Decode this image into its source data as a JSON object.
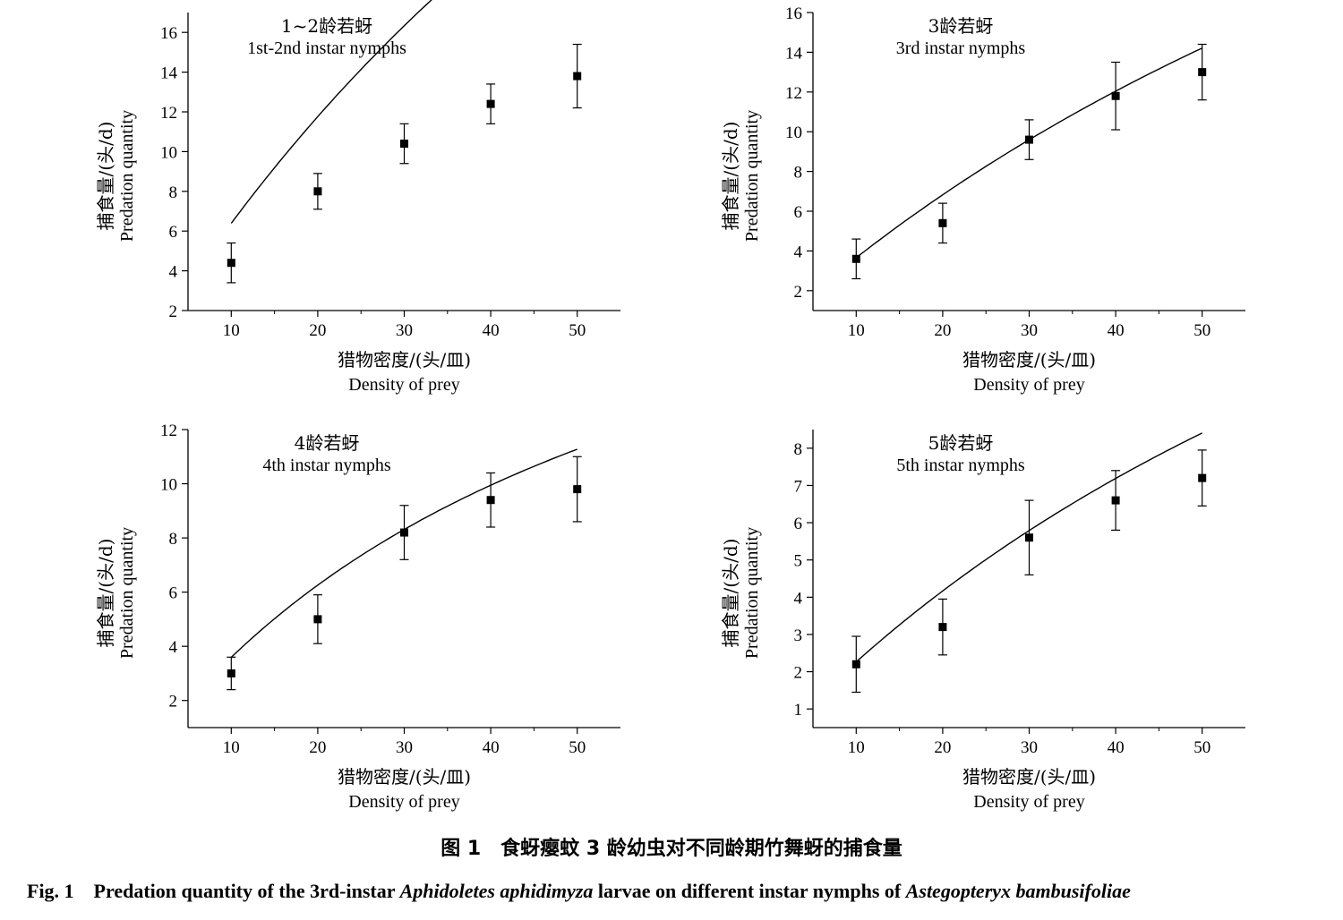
{
  "chart_data": [
    {
      "type": "scatter",
      "title": "1~2龄若蚜",
      "subtitle": "1st-2nd instar nymphs",
      "xlabel_cn": "猎物密度/(头/皿)",
      "xlabel": "Density of prey",
      "ylabel_cn": "捕食量/(头/d)",
      "ylabel": "Predation quantity",
      "xlim": [
        5,
        55
      ],
      "ylim": [
        2,
        17
      ],
      "xticks": [
        10,
        20,
        30,
        40,
        50
      ],
      "yticks": [
        2,
        4,
        6,
        8,
        10,
        12,
        14,
        16
      ],
      "x": [
        10,
        20,
        30,
        40,
        50
      ],
      "y": [
        4.4,
        8.0,
        10.4,
        12.4,
        13.8
      ],
      "err": [
        1.0,
        0.9,
        1.0,
        1.0,
        1.6
      ],
      "fit": {
        "a": 0.7,
        "th": 0.0136
      }
    },
    {
      "type": "scatter",
      "title": "3龄若蚜",
      "subtitle": "3rd instar nymphs",
      "xlabel_cn": "猎物密度/(头/皿)",
      "xlabel": "Density of prey",
      "ylabel_cn": "捕食量/(头/d)",
      "ylabel": "Predation quantity",
      "xlim": [
        5,
        55
      ],
      "ylim": [
        1,
        16
      ],
      "xticks": [
        10,
        20,
        30,
        40,
        50
      ],
      "yticks": [
        2,
        4,
        6,
        8,
        10,
        12,
        14,
        16
      ],
      "x": [
        10,
        20,
        30,
        40,
        50
      ],
      "y": [
        3.6,
        5.4,
        9.6,
        11.8,
        13.0
      ],
      "err": [
        1.0,
        1.0,
        1.0,
        1.7,
        1.4
      ],
      "fit": {
        "a": 0.394,
        "th": 0.0196
      }
    },
    {
      "type": "scatter",
      "title": "4龄若蚜",
      "subtitle": "4th instar nymphs",
      "xlabel_cn": "猎物密度/(头/皿)",
      "xlabel": "Density of prey",
      "ylabel_cn": "捕食量/(头/d)",
      "ylabel": "Predation quantity",
      "xlim": [
        5,
        55
      ],
      "ylim": [
        1,
        12
      ],
      "xticks": [
        10,
        20,
        30,
        40,
        50
      ],
      "yticks": [
        2,
        4,
        6,
        8,
        10,
        12
      ],
      "x": [
        10,
        20,
        30,
        40,
        50
      ],
      "y": [
        3.0,
        5.0,
        8.2,
        9.4,
        9.8
      ],
      "err": [
        0.6,
        0.9,
        1.0,
        1.0,
        1.2
      ],
      "fit": {
        "a": 0.422,
        "th": 0.0413
      }
    },
    {
      "type": "scatter",
      "title": "5龄若蚜",
      "subtitle": "5th instar nymphs",
      "xlabel_cn": "猎物密度/(头/皿)",
      "xlabel": "Density of prey",
      "ylabel_cn": "捕食量/(头/d)",
      "ylabel": "Predation quantity",
      "xlim": [
        5,
        55
      ],
      "ylim": [
        0.5,
        8.5
      ],
      "xticks": [
        10,
        20,
        30,
        40,
        50
      ],
      "yticks": [
        1,
        2,
        3,
        4,
        5,
        6,
        7,
        8
      ],
      "x": [
        10,
        20,
        30,
        40,
        50
      ],
      "y": [
        2.2,
        3.2,
        5.6,
        6.6,
        7.2
      ],
      "err": [
        0.75,
        0.75,
        1.0,
        0.8,
        0.75
      ],
      "fit": {
        "a": 0.248,
        "th": 0.0383
      }
    }
  ],
  "caption": {
    "cn": "图 1　食蚜瘿蚊 3 龄幼虫对不同龄期竹舞蚜的捕食量",
    "en_prefix": "Fig. 1　Predation quantity of the 3rd-instar ",
    "en_species1": "Aphidoletes aphidimyza",
    "en_middle": " larvae on different instar nymphs of ",
    "en_species2": "Astegopteryx bambusifoliae"
  }
}
